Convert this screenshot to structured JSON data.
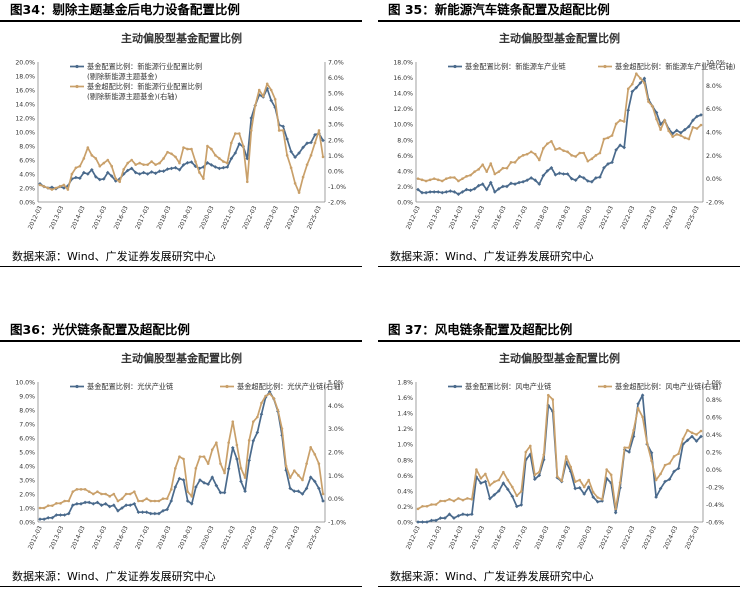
{
  "source_note": "数据来源：Wind、广发证券发展研究中心",
  "chart_data": [
    {
      "fig_label": "图34：剔除主题基金后电力设备配置比例",
      "type": "line",
      "title": "主动偏股型基金配置比例",
      "x_ticks": [
        "2012-03",
        "2013-03",
        "2014-03",
        "2015-03",
        "2016-03",
        "2017-03",
        "2018-03",
        "2019-03",
        "2020-03",
        "2021-03",
        "2022-03",
        "2023-03",
        "2024-03",
        "2025-03"
      ],
      "ylim": [
        0,
        20
      ],
      "y_step": 2,
      "y_fmt": "pct1",
      "y2lim": [
        -2,
        7
      ],
      "y2_step": 1,
      "y2_fmt": "pct1",
      "legend": [
        "基金配置比例：新能源行业配置比例",
        "(剔除新能源主题基金)",
        "基金超配比例：新能源行业配置比例",
        "(剔除新能源主题基金)(右轴)"
      ],
      "series": [
        {
          "name": "基金配置比例：新能源行业配置比例(剔除新能源主题基金)",
          "axis": "left",
          "color": "#4a6a8c",
          "marker": "diamond",
          "values": [
            2.6,
            2.2,
            2.0,
            2.1,
            1.9,
            2.2,
            2.0,
            2.3,
            3.3,
            3.5,
            3.4,
            4.2,
            4.0,
            4.6,
            3.6,
            3.2,
            3.3,
            4.2,
            3.7,
            3.0,
            3.3,
            4.0,
            4.5,
            4.8,
            4.2,
            4.0,
            4.2,
            4.0,
            4.3,
            4.1,
            4.4,
            4.4,
            4.7,
            4.8,
            4.9,
            4.6,
            5.3,
            5.6,
            5.7,
            5.1,
            4.8,
            5.0,
            5.6,
            5.3,
            5.0,
            4.8,
            4.9,
            5.0,
            6.2,
            7.0,
            8.3,
            7.9,
            6.2,
            12.0,
            13.8,
            15.3,
            15.0,
            16.2,
            14.5,
            13.5,
            11.0,
            10.8,
            9.0,
            7.2,
            6.4,
            7.0,
            7.8,
            8.4,
            8.5,
            9.6,
            9.8,
            8.8
          ]
        },
        {
          "name": "基金超配比例：新能源行业配置比例(剔除新能源主题基金)(右轴)",
          "axis": "right",
          "color": "#c9a06a",
          "marker": "circle",
          "values": [
            -0.9,
            -1.0,
            -1.1,
            -1.2,
            -1.1,
            -1.0,
            -0.9,
            -1.2,
            -0.2,
            0.2,
            0.3,
            0.8,
            1.5,
            1.0,
            0.8,
            0.3,
            0.5,
            0.7,
            0.3,
            -0.5,
            -0.7,
            0.1,
            0.5,
            0.7,
            0.4,
            0.5,
            0.4,
            0.4,
            0.6,
            0.4,
            0.5,
            0.8,
            1.2,
            1.1,
            0.9,
            0.5,
            1.5,
            1.4,
            1.4,
            0.6,
            -0.1,
            -0.5,
            1.6,
            1.4,
            1.0,
            0.8,
            0.6,
            0.5,
            1.8,
            2.4,
            2.4,
            1.6,
            -0.7,
            2.6,
            4.2,
            5.2,
            4.8,
            5.6,
            5.2,
            4.6,
            2.6,
            2.6,
            1.0,
            0.2,
            -0.8,
            -1.4,
            -0.4,
            0.4,
            1.0,
            1.8,
            2.6,
            0.9
          ]
        }
      ]
    },
    {
      "fig_label": "图 35：新能源汽车链条配置及超配比例",
      "type": "line",
      "title": "主动偏股型基金配置比例",
      "x_ticks": [
        "2012-03",
        "2013-03",
        "2014-03",
        "2015-03",
        "2016-03",
        "2017-03",
        "2018-03",
        "2019-03",
        "2020-03",
        "2021-03",
        "2022-03",
        "2023-03",
        "2024-03",
        "2025-03"
      ],
      "ylim": [
        0,
        18
      ],
      "y_step": 2,
      "y_fmt": "pct1",
      "y2lim": [
        -2,
        10
      ],
      "y2_step": 2,
      "y2_fmt": "pct1",
      "legend": [
        "基金配置比例：新能源车产业链",
        "基金超配比例：新能源车产业链(右轴)"
      ],
      "series": [
        {
          "name": "基金配置比例：新能源车产业链",
          "axis": "left",
          "color": "#4a6a8c",
          "marker": "diamond",
          "values": [
            1.6,
            1.2,
            1.2,
            1.3,
            1.3,
            1.3,
            1.2,
            1.3,
            1.4,
            1.3,
            1.0,
            1.3,
            1.6,
            1.5,
            1.7,
            2.1,
            2.3,
            1.6,
            2.5,
            1.3,
            1.7,
            2.0,
            2.0,
            2.4,
            2.3,
            2.5,
            2.6,
            2.8,
            3.1,
            2.8,
            2.3,
            3.4,
            4.0,
            4.4,
            3.5,
            3.7,
            3.6,
            3.6,
            3.0,
            2.8,
            3.3,
            3.1,
            2.7,
            2.6,
            3.1,
            3.2,
            4.4,
            4.9,
            5.1,
            6.7,
            7.3,
            7.0,
            11.8,
            14.2,
            14.7,
            15.3,
            15.9,
            13.2,
            12.3,
            11.5,
            10.0,
            10.5,
            9.4,
            8.8,
            9.2,
            8.9,
            9.3,
            9.7,
            10.5,
            11.0,
            11.2
          ]
        },
        {
          "name": "基金超配比例：新能源车产业链(右轴)",
          "axis": "right",
          "color": "#c9a06a",
          "marker": "circle",
          "values": [
            0.0,
            -0.1,
            -0.2,
            -0.1,
            0.0,
            -0.1,
            -0.2,
            0.0,
            0.1,
            0.1,
            -0.2,
            0.0,
            0.2,
            0.3,
            0.6,
            0.8,
            1.2,
            0.6,
            1.3,
            0.4,
            0.6,
            0.9,
            0.9,
            1.4,
            1.4,
            1.8,
            2.0,
            2.1,
            2.3,
            2.1,
            1.6,
            2.6,
            3.0,
            3.2,
            2.5,
            2.6,
            2.4,
            2.3,
            2.0,
            1.9,
            2.2,
            2.2,
            1.5,
            1.7,
            2.0,
            2.2,
            3.4,
            3.5,
            3.7,
            4.7,
            5.0,
            4.9,
            7.7,
            8.1,
            9.0,
            8.6,
            8.2,
            6.6,
            6.2,
            5.1,
            4.2,
            5.0,
            4.1,
            3.6,
            3.8,
            3.7,
            3.5,
            3.4,
            4.4,
            4.3,
            4.6
          ]
        }
      ]
    },
    {
      "fig_label": "图36：光伏链条配置及超配比例",
      "type": "line",
      "title": "主动偏股型基金配置比例",
      "x_ticks": [
        "2012-03",
        "2013-03",
        "2014-03",
        "2015-03",
        "2016-03",
        "2017-03",
        "2018-03",
        "2019-03",
        "2020-03",
        "2021-03",
        "2022-03",
        "2023-03",
        "2024-03",
        "2025-03"
      ],
      "ylim": [
        0,
        10
      ],
      "y_step": 1,
      "y_fmt": "pct1",
      "y2lim": [
        -1,
        5
      ],
      "y2_step": 1,
      "y2_fmt": "pct1",
      "legend": [
        "基金配置比例：光伏产业链",
        "基金超配比例：光伏产业链(右轴)"
      ],
      "series": [
        {
          "name": "基金配置比例：光伏产业链",
          "axis": "left",
          "color": "#4a6a8c",
          "marker": "diamond",
          "values": [
            0.2,
            0.2,
            0.3,
            0.3,
            0.5,
            0.5,
            0.5,
            0.6,
            1.2,
            1.3,
            1.3,
            1.4,
            1.4,
            1.3,
            1.4,
            1.2,
            1.3,
            1.1,
            1.2,
            0.8,
            1.0,
            1.2,
            1.2,
            1.3,
            0.7,
            0.7,
            0.7,
            0.6,
            0.6,
            0.6,
            0.8,
            0.9,
            1.5,
            2.5,
            3.1,
            3.0,
            1.5,
            1.3,
            2.5,
            3.0,
            2.8,
            2.7,
            3.2,
            2.6,
            2.1,
            2.1,
            3.8,
            5.3,
            4.5,
            2.9,
            2.2,
            4.4,
            5.8,
            6.4,
            7.7,
            8.9,
            9.3,
            8.8,
            7.9,
            6.2,
            3.7,
            2.4,
            2.2,
            2.2,
            2.0,
            2.4,
            3.2,
            2.9,
            2.4,
            1.5
          ]
        },
        {
          "name": "基金超配比例：光伏产业链(右轴)",
          "axis": "right",
          "color": "#c9a06a",
          "marker": "circle",
          "values": [
            -0.4,
            -0.4,
            -0.3,
            -0.3,
            -0.2,
            -0.2,
            -0.1,
            -0.1,
            0.3,
            0.4,
            0.4,
            0.4,
            0.3,
            0.2,
            0.3,
            0.2,
            0.2,
            0.1,
            0.2,
            -0.1,
            0.0,
            0.2,
            0.2,
            0.3,
            -0.1,
            -0.1,
            0.0,
            -0.1,
            -0.1,
            -0.1,
            0.0,
            0.0,
            0.4,
            1.3,
            1.8,
            1.7,
            0.3,
            0.1,
            1.3,
            1.8,
            1.8,
            1.5,
            2.1,
            2.4,
            1.5,
            1.1,
            2.4,
            3.3,
            2.3,
            1.3,
            0.9,
            2.5,
            3.3,
            3.5,
            4.1,
            4.4,
            4.5,
            4.3,
            3.8,
            3.0,
            1.4,
            0.9,
            1.2,
            1.0,
            0.8,
            1.5,
            2.2,
            1.9,
            1.5,
            0.2
          ]
        }
      ]
    },
    {
      "fig_label": "图 37：风电链条配置及超配比例",
      "type": "line",
      "title": "主动偏股型基金配置比例",
      "x_ticks": [
        "2012-03",
        "2013-03",
        "2014-03",
        "2015-03",
        "2016-03",
        "2017-03",
        "2018-03",
        "2019-03",
        "2020-03",
        "2021-03",
        "2022-03",
        "2023-03",
        "2024-03",
        "2025-03"
      ],
      "ylim": [
        0,
        1.8
      ],
      "y_step": 0.2,
      "y_fmt": "pct1",
      "y2lim": [
        -0.6,
        1.0
      ],
      "y2_step": 0.2,
      "y2_fmt": "pct1",
      "legend": [
        "基金配置比例：风电产业链",
        "基金超配比例：风电产业链(右轴)"
      ],
      "series": [
        {
          "name": "基金配置比例：风电产业链",
          "axis": "left",
          "color": "#4a6a8c",
          "marker": "diamond",
          "values": [
            0.0,
            0.0,
            0.0,
            0.02,
            0.02,
            0.05,
            0.05,
            0.1,
            0.05,
            0.08,
            0.1,
            0.09,
            0.1,
            0.58,
            0.5,
            0.52,
            0.3,
            0.35,
            0.4,
            0.5,
            0.42,
            0.33,
            0.2,
            0.22,
            0.8,
            0.87,
            0.55,
            0.6,
            0.8,
            1.5,
            1.42,
            0.57,
            0.52,
            0.77,
            0.65,
            0.43,
            0.44,
            0.36,
            0.45,
            0.32,
            0.26,
            0.27,
            0.56,
            0.5,
            0.12,
            0.44,
            0.93,
            0.9,
            1.1,
            1.52,
            1.63,
            1.0,
            0.89,
            0.32,
            0.43,
            0.52,
            0.55,
            0.65,
            0.69,
            1.0,
            1.05,
            1.1,
            1.04,
            1.1
          ]
        },
        {
          "name": "基金超配比例：风电产业链(右轴)",
          "axis": "right",
          "color": "#c9a06a",
          "marker": "circle",
          "values": [
            -0.45,
            -0.42,
            -0.42,
            -0.4,
            -0.4,
            -0.36,
            -0.36,
            -0.34,
            -0.36,
            -0.33,
            -0.35,
            -0.33,
            -0.34,
            0.0,
            -0.1,
            -0.05,
            -0.18,
            -0.14,
            -0.12,
            -0.03,
            -0.12,
            -0.2,
            -0.3,
            -0.25,
            0.2,
            0.27,
            -0.06,
            -0.03,
            0.17,
            0.85,
            0.8,
            -0.08,
            -0.13,
            0.15,
            0.03,
            -0.14,
            -0.12,
            -0.2,
            -0.12,
            -0.26,
            -0.32,
            -0.34,
            0.0,
            -0.06,
            -0.45,
            -0.15,
            0.25,
            0.25,
            0.45,
            0.7,
            0.6,
            0.3,
            0.1,
            -0.12,
            -0.05,
            0.05,
            0.07,
            0.15,
            0.18,
            0.35,
            0.45,
            0.42,
            0.4,
            0.44
          ]
        }
      ]
    }
  ]
}
